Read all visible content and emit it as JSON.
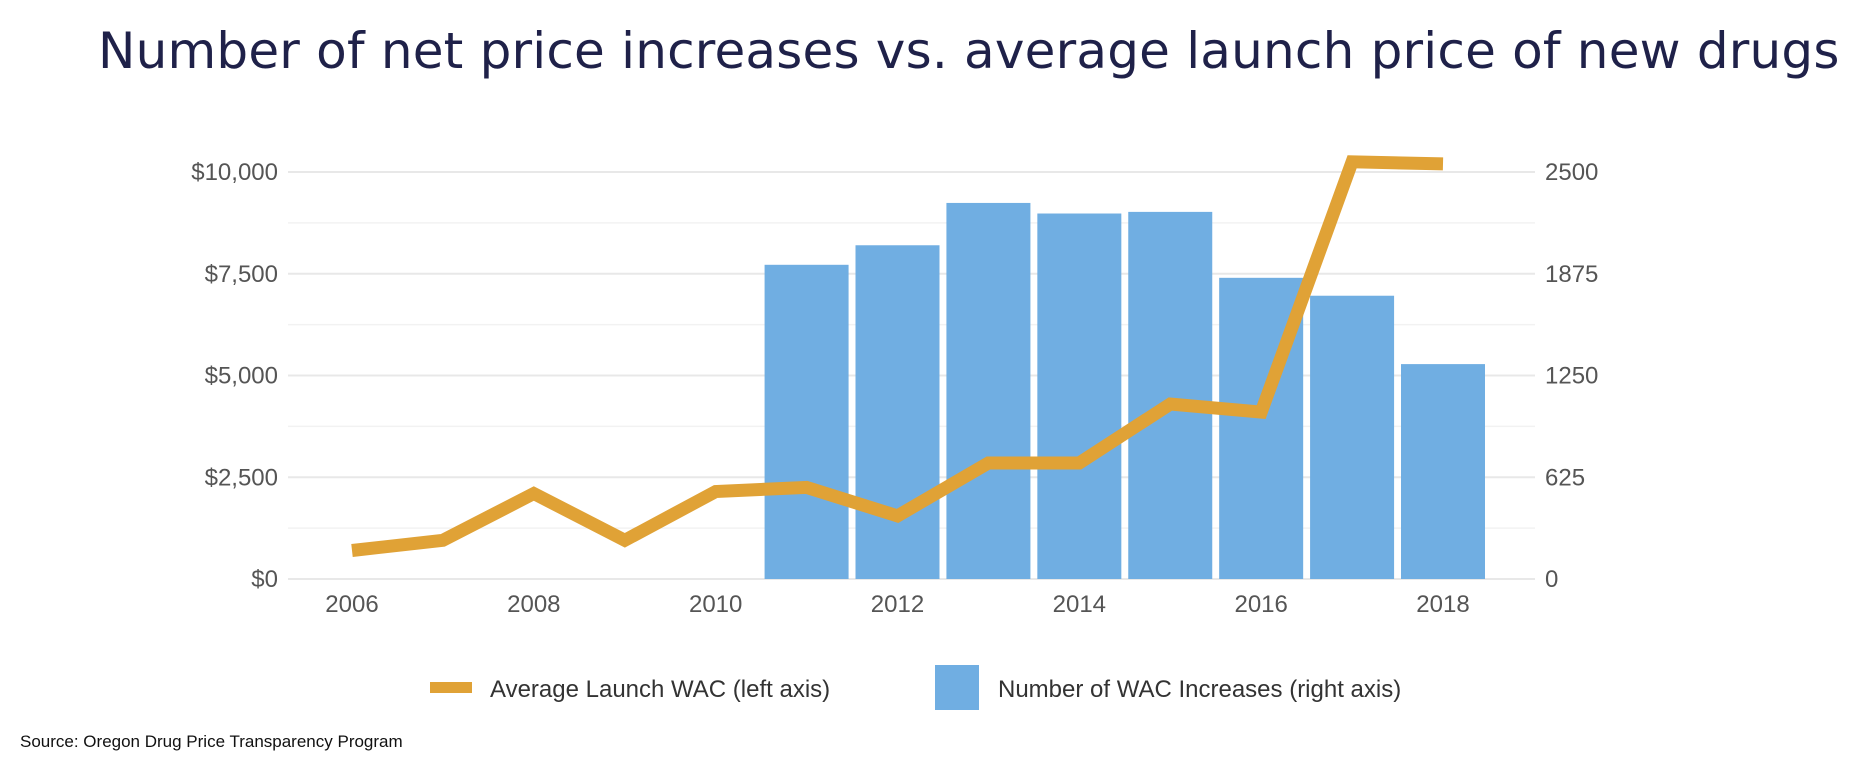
{
  "title": "Number of net price increases vs. average launch price of new drugs",
  "source": "Source: Oregon Drug Price Transparency Program",
  "colors": {
    "line": "#e0a236",
    "bars": "#70aee2",
    "grid": "#e8e8e8",
    "tick_text": "#555555"
  },
  "chart_data": {
    "type": "bar+line",
    "x": [
      2006,
      2007,
      2008,
      2009,
      2010,
      2011,
      2012,
      2013,
      2014,
      2015,
      2016,
      2017,
      2018
    ],
    "x_tick_labels": [
      "2006",
      "2008",
      "2010",
      "2012",
      "2014",
      "2016",
      "2018"
    ],
    "y_left_tick_labels": [
      "$0",
      "$2,500",
      "$5,000",
      "$7,500",
      "$10,000"
    ],
    "y_left_ticks": [
      0,
      2500,
      5000,
      7500,
      10000
    ],
    "ylim_left": [
      0,
      10000
    ],
    "y_right_tick_labels": [
      "0",
      "625",
      "1250",
      "1875",
      "2500"
    ],
    "y_right_ticks": [
      0,
      625,
      1250,
      1875,
      2500
    ],
    "ylim_right": [
      0,
      2500
    ],
    "grid": true,
    "legend_position": "bottom",
    "series": [
      {
        "name": "Average Launch WAC (left axis)",
        "type": "line",
        "axis": "left",
        "values": [
          700,
          950,
          2100,
          950,
          2150,
          2250,
          1550,
          2850,
          2850,
          4300,
          4100,
          10250,
          10200
        ]
      },
      {
        "name": "Number of WAC Increases (right axis)",
        "type": "bar",
        "axis": "right",
        "values": [
          null,
          null,
          null,
          null,
          null,
          1930,
          2050,
          2310,
          2245,
          2255,
          1850,
          1740,
          1320
        ]
      }
    ]
  }
}
